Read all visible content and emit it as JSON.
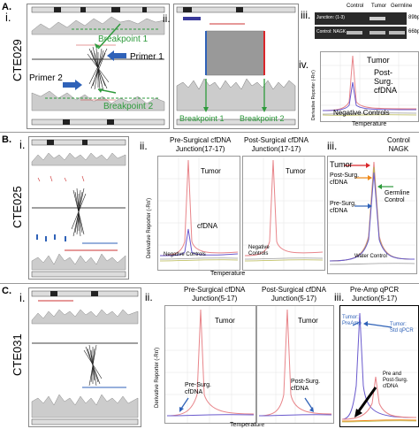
{
  "panelA": {
    "letter": "A.",
    "sample": "CTE029",
    "i": "i.",
    "ii": "ii.",
    "iii": "iii.",
    "iv": "iv.",
    "breakpoint1": "Breakpoint 1",
    "breakpoint2": "Breakpoint 2",
    "primer1": "Primer 1",
    "primer2": "Primer 2",
    "ii_breakpoint1": "Breakpoint 1",
    "ii_breakpoint2": "Breakpoint 2",
    "gel": {
      "headers": [
        "Control",
        "Tumor",
        "Germline"
      ],
      "rows": [
        {
          "label": "Junction: (1-3)",
          "size": "89bp"
        },
        {
          "label": "Control: NAGK",
          "size": "66bp"
        }
      ]
    },
    "iv_chart": {
      "tumor": "Tumor",
      "postsurg": "Post-\nSurg.\ncfDNA",
      "negative": "Negative Controls",
      "ylabel": "Derivative Reporter (-Rn')",
      "xlabel": "Temperature"
    }
  },
  "panelB": {
    "letter": "B.",
    "sample": "CTE025",
    "i": "i.",
    "ii": "ii.",
    "iii": "iii.",
    "chart1_title": "Pre-Surgical cfDNA\nJunction(17-17)",
    "chart2_title": "Post-Surgical cfDNA\nJunction(17-17)",
    "chart3_title": "Control\nNAGK",
    "tumor": "Tumor",
    "cfdna": "cfDNA",
    "negative": "Negative Controls",
    "negative2": "Negative\nControls",
    "ylabel": "Derivative Reporter (-Rn')",
    "xlabel": "Temperature",
    "c3_tumor": "Tumor",
    "c3_postsurg": "Post-Surg.\ncfDNA",
    "c3_germline": "Germline\nControl",
    "c3_presurg": "Pre-Surg.\ncfDNA",
    "c3_water": "Water Control"
  },
  "panelC": {
    "letter": "C.",
    "sample": "CTE031",
    "i": "i.",
    "ii": "ii.",
    "iii": "iii.",
    "chart1_title": "Pre-Surgical cfDNA\nJunction(5-17)",
    "chart2_title": "Post-Surgical cfDNA\nJunction(5-17)",
    "chart3_title": "Pre-Amp qPCR\nJunction(5-17)",
    "tumor": "Tumor",
    "presurg": "Pre-Surg.\ncfDNA",
    "postsurg": "Post-Surg.\ncfDNA",
    "ylabel": "Derivative Reporter (-Rn')",
    "xlabel": "Temperature",
    "c3_tumor_pre": "Tumor:\nPreAmp",
    "c3_tumor_std": "Tumor:\nStd qPCR",
    "c3_prepost": "Pre and\nPost-Surg.\ncfDNA"
  },
  "colors": {
    "green": "#2e9a3c",
    "blue": "#2f62b8",
    "pink": "#e8858a",
    "red": "#d9262a",
    "orange": "#f08a1a",
    "black": "#000000"
  }
}
